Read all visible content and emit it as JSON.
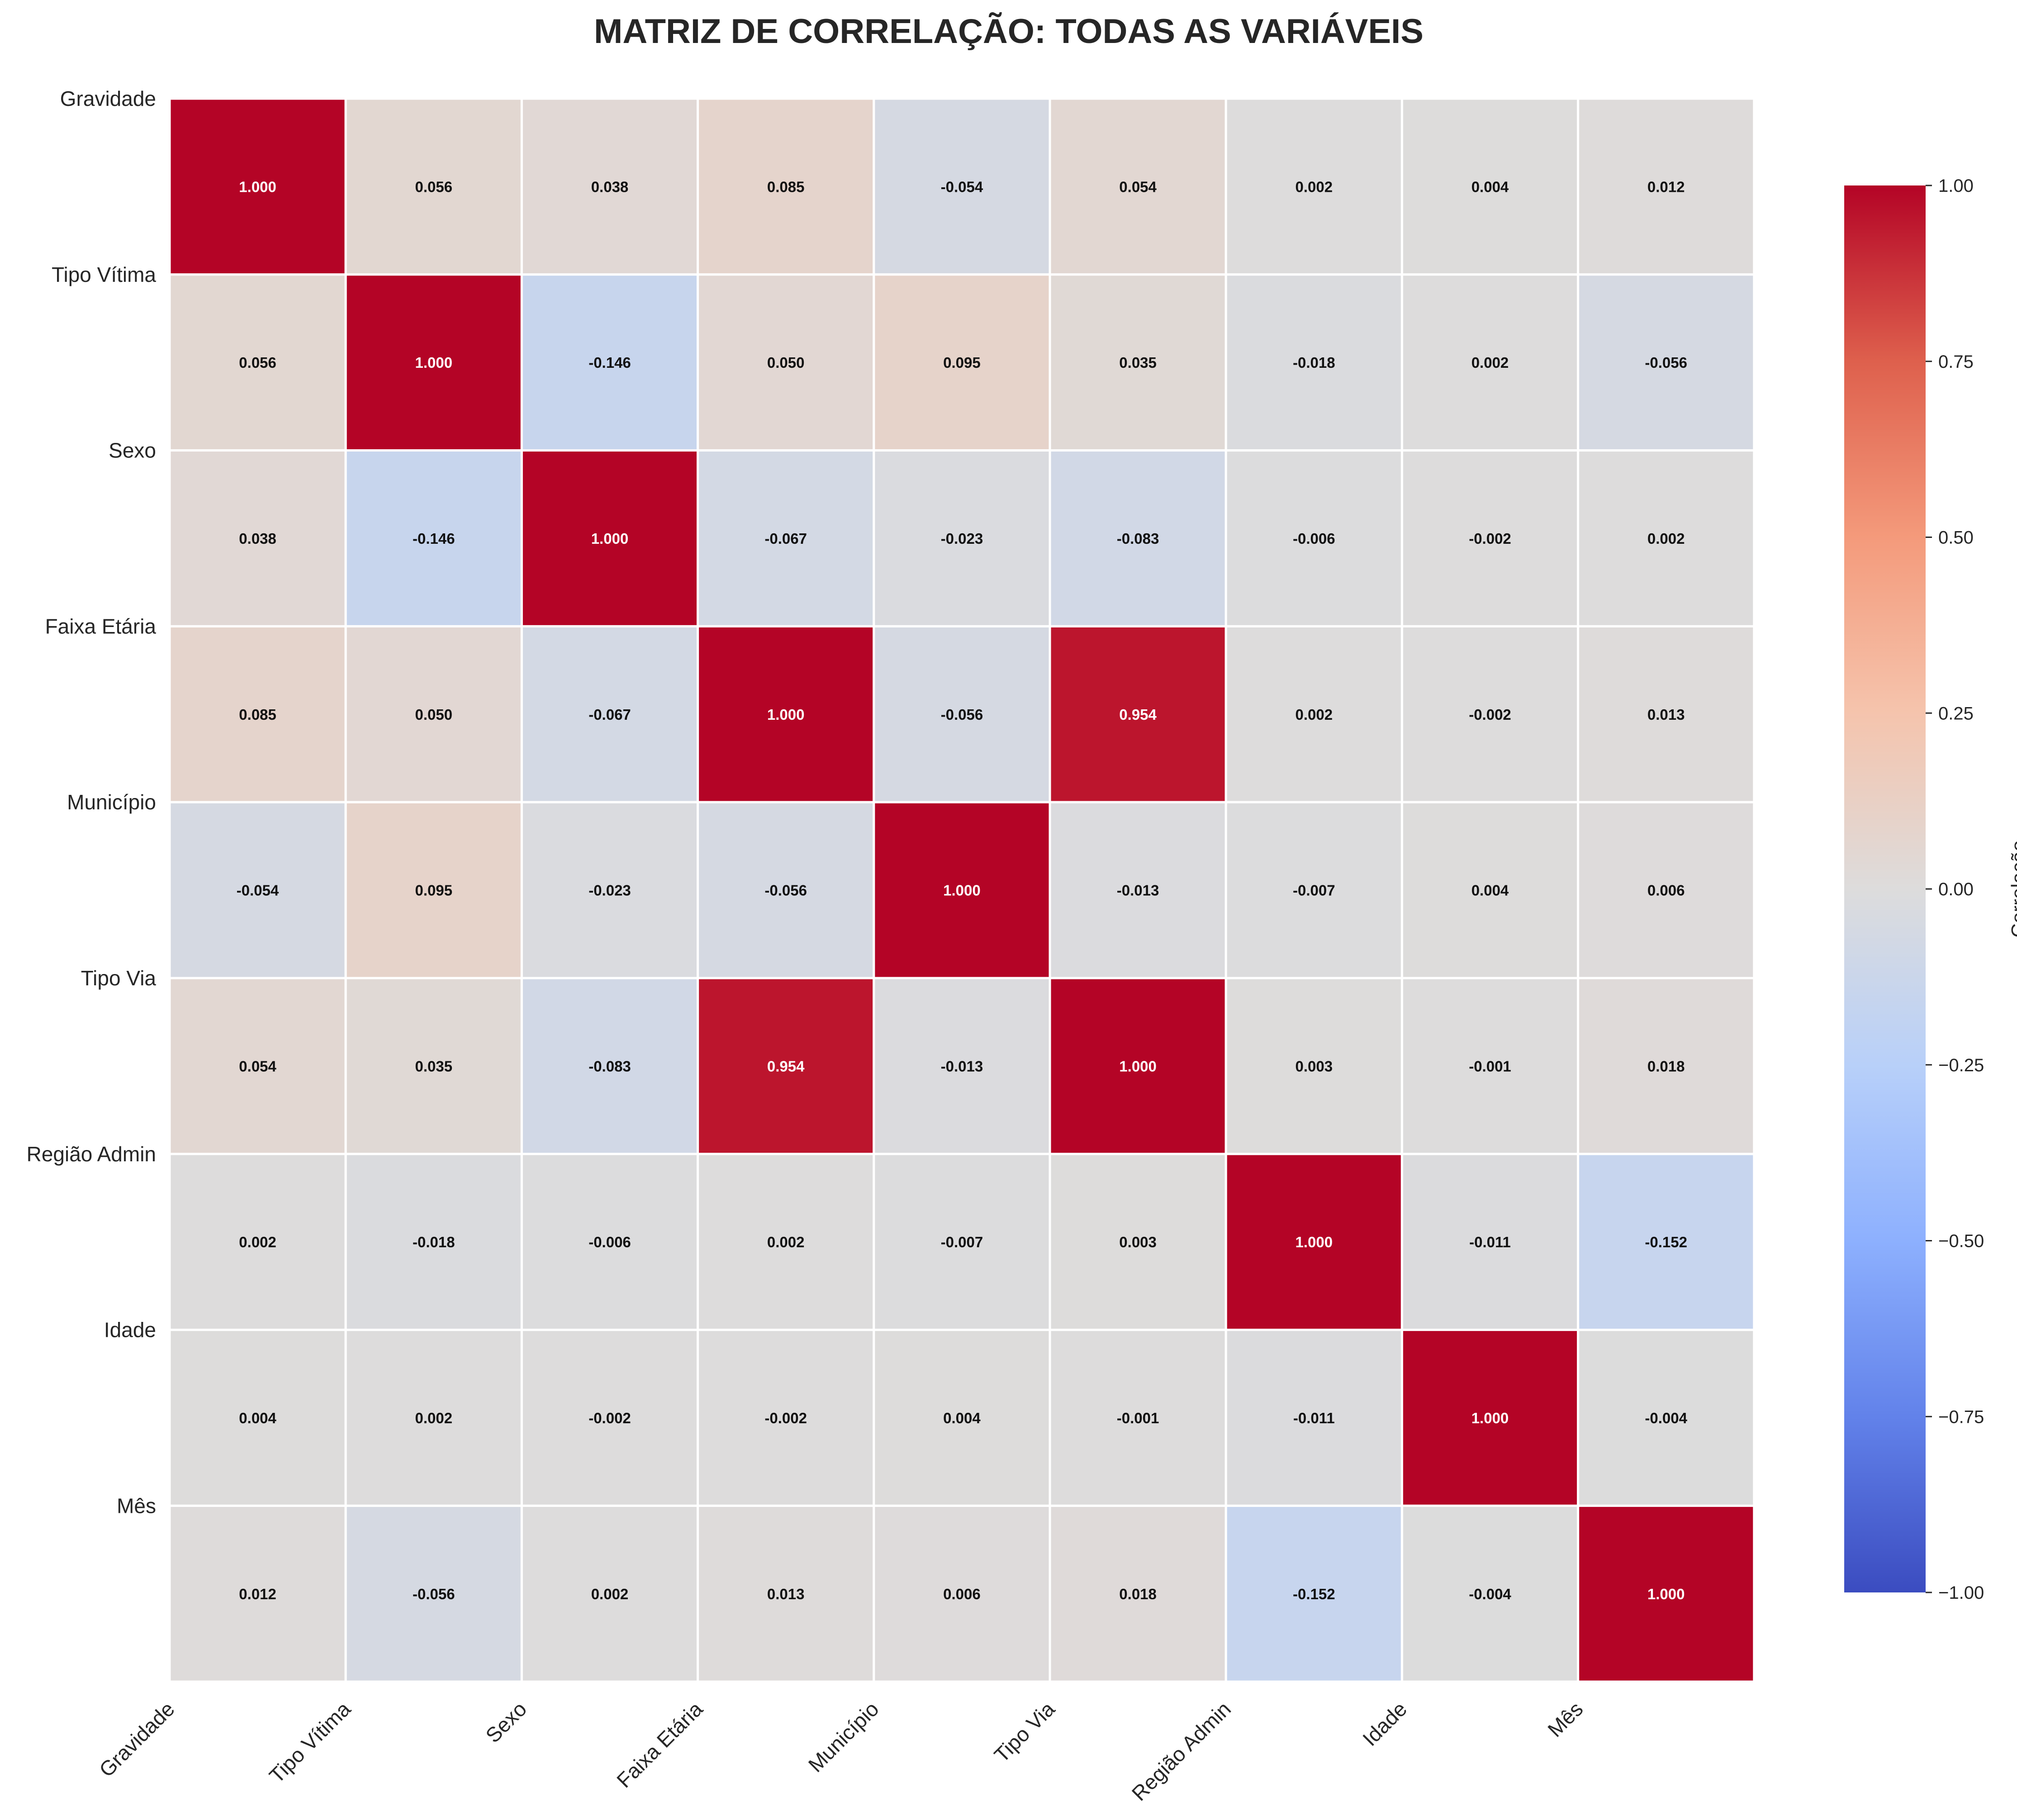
{
  "chart_data": {
    "type": "heatmap",
    "title": "MATRIZ DE CORRELAÇÃO: TODAS AS VARIÁVEIS",
    "row_labels": [
      "Gravidade",
      "Tipo Vítima",
      "Sexo",
      "Faixa Etária",
      "Município",
      "Tipo Via",
      "Região Admin",
      "Idade",
      "Mês"
    ],
    "col_labels": [
      "Gravidade",
      "Tipo Vítima",
      "Sexo",
      "Faixa Etária",
      "Município",
      "Tipo Via",
      "Região Admin",
      "Idade",
      "Mês"
    ],
    "values": [
      [
        1.0,
        0.056,
        0.038,
        0.085,
        -0.054,
        0.054,
        0.002,
        0.004,
        0.012
      ],
      [
        0.056,
        1.0,
        -0.146,
        0.05,
        0.095,
        0.035,
        -0.018,
        0.002,
        -0.056
      ],
      [
        0.038,
        -0.146,
        1.0,
        -0.067,
        -0.023,
        -0.083,
        -0.006,
        -0.002,
        0.002
      ],
      [
        0.085,
        0.05,
        -0.067,
        1.0,
        -0.056,
        0.954,
        0.002,
        -0.002,
        0.013
      ],
      [
        -0.054,
        0.095,
        -0.023,
        -0.056,
        1.0,
        -0.013,
        -0.007,
        0.004,
        0.006
      ],
      [
        0.054,
        0.035,
        -0.083,
        0.954,
        -0.013,
        1.0,
        0.003,
        -0.001,
        0.018
      ],
      [
        0.002,
        -0.018,
        -0.006,
        0.002,
        -0.007,
        0.003,
        1.0,
        -0.011,
        -0.152
      ],
      [
        0.004,
        0.002,
        -0.002,
        -0.002,
        0.004,
        -0.001,
        -0.011,
        1.0,
        -0.004
      ],
      [
        0.012,
        -0.056,
        0.002,
        0.013,
        0.006,
        0.018,
        -0.152,
        -0.004,
        1.0
      ]
    ],
    "value_format": "3 decimals",
    "colormap": "coolwarm",
    "vmin": -1.0,
    "vmax": 1.0,
    "colorbar": {
      "label": "Correlação",
      "ticks": [
        "1.00",
        "0.75",
        "0.50",
        "0.25",
        "0.00",
        "−0.25",
        "−0.50",
        "−0.75",
        "−1.00"
      ],
      "tick_values": [
        1.0,
        0.75,
        0.5,
        0.25,
        0.0,
        -0.25,
        -0.5,
        -0.75,
        -1.0
      ],
      "placement": "right"
    },
    "grid": false,
    "cell_border_color": "#ffffff"
  }
}
